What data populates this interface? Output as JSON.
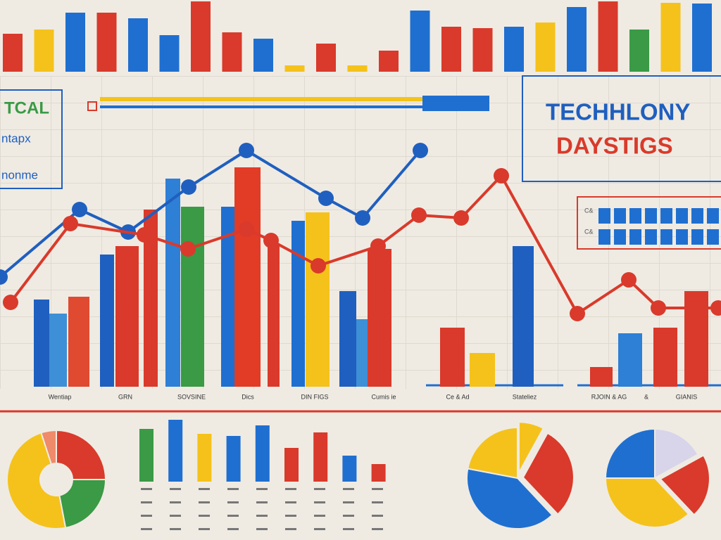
{
  "chart_data": [
    {
      "type": "bar",
      "ylim": [
        0,
        100
      ],
      "values": [
        54,
        60,
        84,
        84,
        76,
        52,
        100,
        56,
        47,
        9,
        40,
        9,
        30,
        87,
        64,
        62,
        64,
        70,
        92,
        100,
        60,
        98,
        97
      ],
      "colors": [
        "#d93a2b",
        "#f5c21b",
        "#1f6fd0",
        "#d93a2b",
        "#1f6fd0",
        "#1f6fd0",
        "#d93a2b",
        "#d93a2b",
        "#1f6fd0",
        "#f5c21b",
        "#d93a2b",
        "#f5c21b",
        "#d93a2b",
        "#1f6fd0",
        "#d93a2b",
        "#d93a2b",
        "#1f6fd0",
        "#f5c21b",
        "#1f6fd0",
        "#d93a2b",
        "#3a9a45",
        "#f5c21b",
        "#1f6fd0"
      ]
    },
    {
      "type": "bar",
      "ylim": [
        0,
        100
      ],
      "values": [
        31,
        26,
        32,
        47,
        50,
        63,
        74,
        64,
        64,
        78,
        51,
        59,
        62,
        34,
        24,
        49,
        21,
        12,
        50,
        7,
        19,
        21,
        34
      ],
      "colors": [
        "#1f5fbf",
        "#3d8fd6",
        "#e04a30",
        "#1f5fbf",
        "#d93a2b",
        "#d93a2b",
        "#2e7fd6",
        "#3a9a45",
        "#1f6fd0",
        "#e23b26",
        "#d93a2b",
        "#1f6fd0",
        "#f5c21b",
        "#1f5fbf",
        "#3d8fd6",
        "#d93a2b",
        "#d93a2b",
        "#f5c21b",
        "#1f5fbf",
        "#d93a2b",
        "#2e7fd6",
        "#d93a2b",
        "#d93a2b"
      ],
      "annotations": [
        "Wentiap",
        "GRN",
        "SOVSINE",
        "Dics",
        "DIN FIGS",
        "Cumis ie",
        "Ce & Ad",
        "Stateliez",
        "RJOIN & AG",
        "&",
        "GIANIS"
      ]
    },
    {
      "type": "line",
      "ylim": [
        0,
        100
      ],
      "series": [
        {
          "color": "#1f5fbf",
          "values": [
            39,
            63,
            55,
            71,
            84,
            67,
            60,
            84
          ]
        },
        {
          "color": "#d93a2b",
          "values": [
            30,
            58,
            54,
            49,
            56,
            52,
            43,
            50,
            61,
            60,
            75,
            26,
            38,
            28,
            28
          ]
        }
      ]
    },
    {
      "type": "bar",
      "ylim": [
        0,
        100
      ],
      "values": [
        75,
        88,
        68,
        65,
        80,
        48,
        70,
        37,
        25
      ],
      "colors": [
        "#3a9a45",
        "#1f6fd0",
        "#f5c21b",
        "#1f6fd0",
        "#1f6fd0",
        "#d93a2b",
        "#d93a2b",
        "#1f6fd0",
        "#d93a2b"
      ]
    },
    {
      "type": "pie",
      "values": [
        25,
        22,
        48,
        5
      ],
      "colors": [
        "#d93a2b",
        "#3a9a45",
        "#f5c21b",
        "#ef8a6a"
      ]
    },
    {
      "type": "pie",
      "values": [
        8,
        30,
        40,
        22
      ],
      "colors": [
        "#f5c21b",
        "#d93a2b",
        "#1f6fd0",
        "#f5c21b"
      ]
    },
    {
      "type": "pie",
      "values": [
        17,
        21,
        37,
        25
      ],
      "colors": [
        "#d8d4ea",
        "#d93a2b",
        "#f5c21b",
        "#1f6fd0"
      ]
    }
  ],
  "left_panel": {
    "lines": [
      "TCAL",
      "ntapx",
      "nonme"
    ]
  },
  "right_panel": {
    "title": "TECHHLONY",
    "subtitle": "DAYSTIGS"
  },
  "key_panel": {
    "labels": [
      "C&",
      "C&"
    ]
  }
}
